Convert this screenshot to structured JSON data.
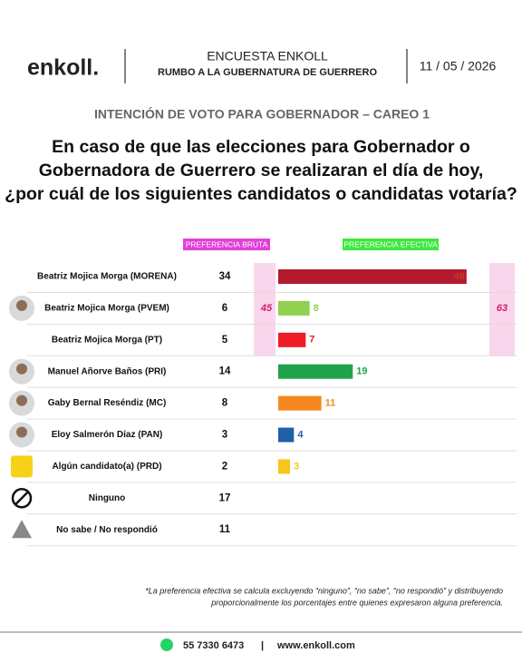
{
  "header": {
    "brand": "enkoll.",
    "title": "ENCUESTA ENKOLL",
    "subtitle": "RUMBO A LA  GUBERNATURA DE GUERRERO",
    "date": "11 / 05 / 2026"
  },
  "chart_data": {
    "type": "bar",
    "title": "INTENCIÓN DE VOTO PARA GOBERNADOR – CAREO 1",
    "question": [
      "En caso de que las elecciones para Gobernador o",
      "Gobernadora de Guerrero se realizaran el día de hoy,",
      "¿por cuál de los siguientes candidatos o candidatas votaría?"
    ],
    "categories": [
      "Beatriz Mojica Morga (MORENA)",
      "Beatriz Mojica Morga (PVEM)",
      "Beatriz Mojica Morga (PT)",
      "Manuel Añorve Baños (PRI)",
      "Gaby Bernal Reséndiz (MC)",
      "Eloy Salmerón Díaz (PAN)",
      "Algún candidato(a) (PRD)",
      "Ninguno",
      "No sabe / No respondió"
    ],
    "series": [
      {
        "name": "PREFERENCIA BRUTA",
        "color": "#e040d8",
        "values": [
          34,
          6,
          5,
          14,
          8,
          3,
          2,
          17,
          11
        ]
      },
      {
        "name": "PREFERENCIA EFECTIVA",
        "color": "#3ee83e",
        "values": [
          48,
          8,
          7,
          19,
          11,
          4,
          3,
          null,
          null
        ],
        "colors": [
          "#b5192c",
          "#92d050",
          "#ee1c24",
          "#1fa24a",
          "#f5891f",
          "#1f5fa8",
          "#f7c51c",
          null,
          null
        ]
      }
    ],
    "group_totals": {
      "bruta": 45,
      "efectiva": 63
    }
  },
  "footnote": [
    "*La preferencia efectiva se calcula excluyendo “ninguno”, “no sabe”, “no respondió” y distribuyendo",
    "proporcionalmente los porcentajes entre quienes expresaron alguna preferencia."
  ],
  "footer": {
    "phone": "55 7330 6473",
    "separator": "|",
    "website": "www.enkoll.com"
  }
}
